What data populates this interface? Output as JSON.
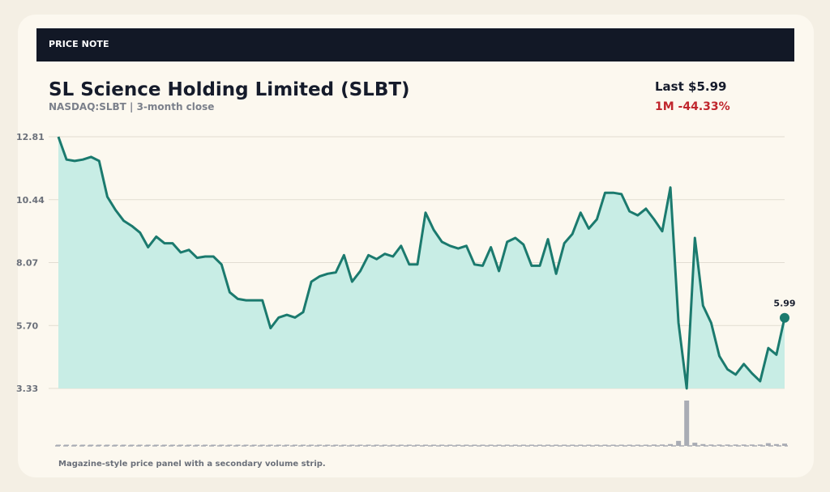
{
  "banner": {
    "label": "PRICE NOTE"
  },
  "header": {
    "title": "SL Science Holding Limited (SLBT)",
    "subtitle": "NASDAQ:SLBT | 3-month close",
    "last": "Last $5.99",
    "change": "1M -44.33%"
  },
  "caption": "Magazine-style price panel with a secondary volume strip.",
  "colors": {
    "line": "#1b7a6e",
    "area": "#c8ede5",
    "volume_bar": "#a9acb4",
    "change_negative": "#c0262d"
  },
  "chart_data": {
    "type": "area",
    "title": "SL Science Holding Limited (SLBT)",
    "xlabel": "",
    "ylabel": "",
    "ylim": [
      3.33,
      12.81
    ],
    "yticks": [
      "12.81",
      "10.44",
      "8.07",
      "5.70",
      "3.33"
    ],
    "grid": true,
    "end_label": "5.99",
    "series": [
      {
        "values": [
          12.81,
          11.95,
          11.9,
          11.95,
          12.05,
          11.9,
          10.55,
          10.05,
          9.65,
          9.45,
          9.2,
          8.65,
          9.05,
          8.8,
          8.8,
          8.45,
          8.55,
          8.25,
          8.3,
          8.3,
          8.0,
          6.95,
          6.7,
          6.65,
          6.65,
          6.65,
          5.6,
          6.0,
          6.1,
          6.0,
          6.2,
          7.35,
          7.55,
          7.65,
          7.7,
          8.35,
          7.35,
          7.75,
          8.35,
          8.2,
          8.4,
          8.3,
          8.7,
          8.0,
          8.0,
          9.95,
          9.3,
          8.85,
          8.7,
          8.6,
          8.7,
          8.0,
          7.95,
          8.65,
          7.75,
          8.85,
          9.0,
          8.75,
          7.95,
          7.95,
          8.95,
          7.65,
          8.8,
          9.15,
          9.95,
          9.35,
          9.7,
          10.7,
          10.7,
          10.65,
          10.0,
          9.85,
          10.1,
          9.7,
          9.25,
          10.9,
          5.8,
          3.33,
          9.0,
          6.45,
          5.8,
          4.55,
          4.05,
          3.85,
          4.25,
          3.9,
          3.6,
          4.85,
          4.6,
          5.99
        ]
      }
    ],
    "volume": [
      0.02,
      0.02,
      0.02,
      0.02,
      0.02,
      0.02,
      0.02,
      0.02,
      0.02,
      0.02,
      0.02,
      0.02,
      0.02,
      0.02,
      0.02,
      0.02,
      0.02,
      0.02,
      0.02,
      0.02,
      0.02,
      0.02,
      0.02,
      0.02,
      0.02,
      0.02,
      0.02,
      0.02,
      0.02,
      0.02,
      0.02,
      0.02,
      0.02,
      0.02,
      0.02,
      0.02,
      0.02,
      0.02,
      0.02,
      0.02,
      0.02,
      0.02,
      0.02,
      0.02,
      0.02,
      0.02,
      0.02,
      0.02,
      0.02,
      0.02,
      0.02,
      0.02,
      0.02,
      0.02,
      0.02,
      0.02,
      0.02,
      0.02,
      0.02,
      0.02,
      0.02,
      0.02,
      0.02,
      0.02,
      0.02,
      0.02,
      0.02,
      0.02,
      0.02,
      0.02,
      0.02,
      0.02,
      0.02,
      0.03,
      0.03,
      0.04,
      0.11,
      1.0,
      0.07,
      0.04,
      0.03,
      0.03,
      0.03,
      0.03,
      0.03,
      0.03,
      0.03,
      0.06,
      0.04,
      0.05
    ]
  }
}
